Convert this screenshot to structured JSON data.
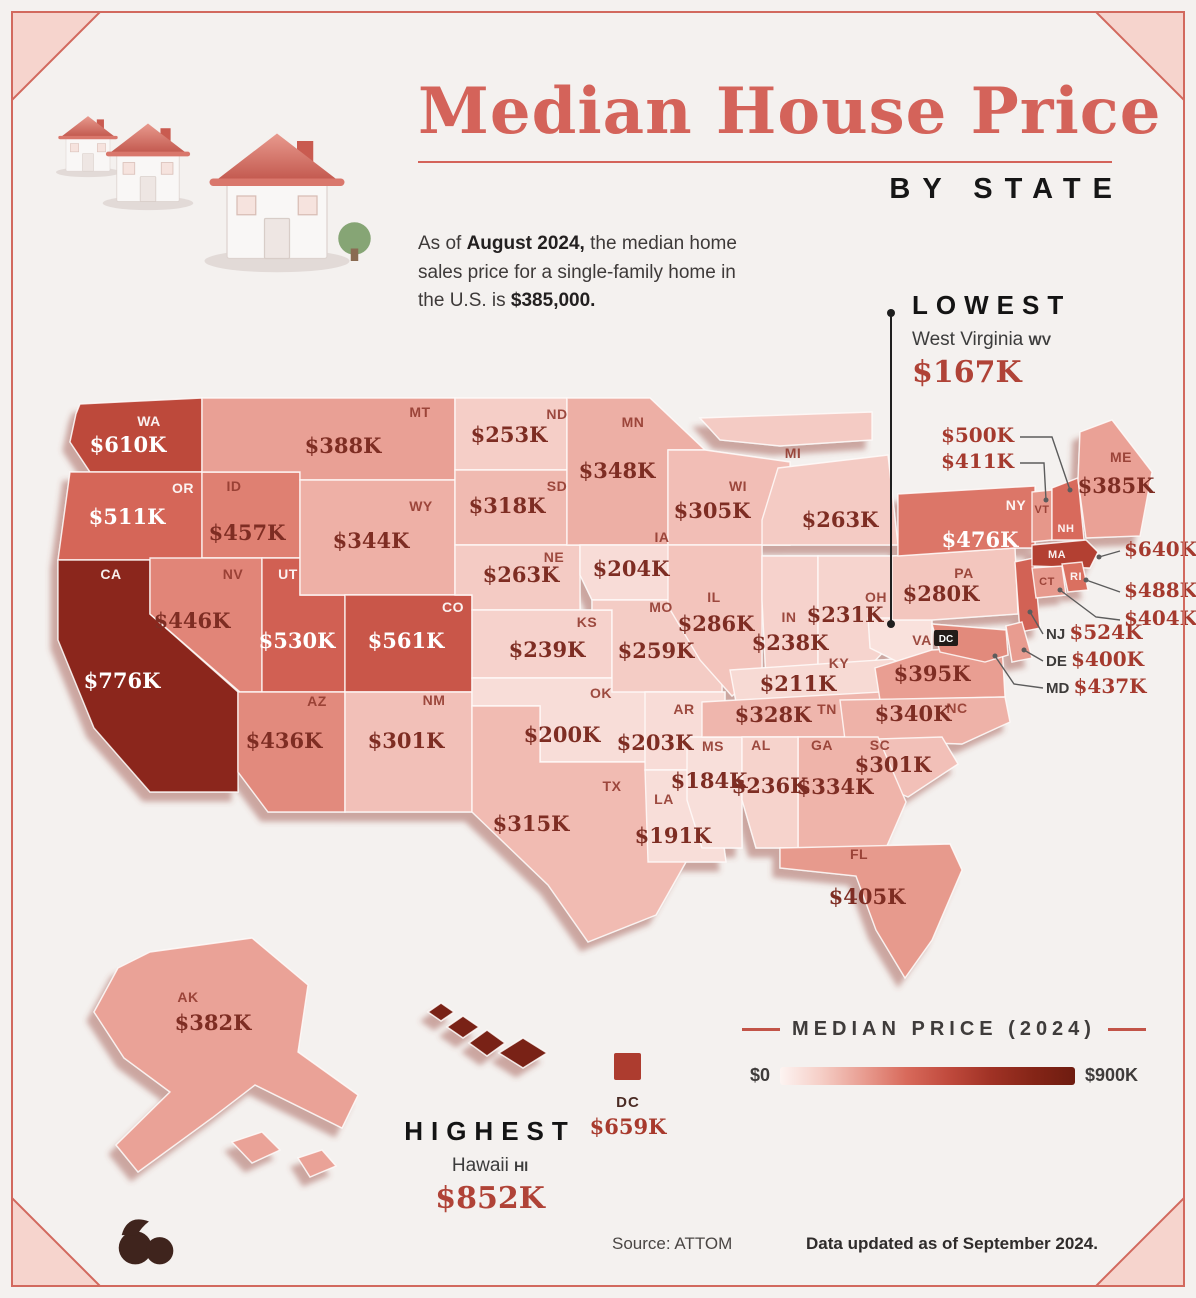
{
  "header": {
    "title": "Median House Price",
    "subtitle": "BY STATE",
    "desc_prefix": "As of ",
    "desc_bold1": "August 2024,",
    "desc_mid": " the median home sales price for a single-family home in the U.S. is ",
    "desc_bold2": "$385,000."
  },
  "annotations": {
    "lowest_label": "LOWEST",
    "lowest_state": "West Virginia",
    "lowest_abbr": "WV",
    "lowest_value": "$167K",
    "highest_label": "HIGHEST",
    "highest_state": "Hawaii",
    "highest_abbr": "HI",
    "highest_value": "$852K",
    "dc_label": "DC",
    "dc_value": "$659K"
  },
  "legend": {
    "title": "MEDIAN PRICE (2024)",
    "min": "$0",
    "max": "$900K",
    "gradient": [
      "#fdf4f2",
      "#f5cdc5",
      "#e89c90",
      "#d86a5b",
      "#c04a3d",
      "#a03225",
      "#852517",
      "#6e1c10"
    ]
  },
  "footer": {
    "source": "Source: ATTOM",
    "updated": "Data updated as of September 2024."
  },
  "colors": {
    "accent": "#d4635a",
    "deep_red": "#a83a2d",
    "background": "#f4f1ef"
  },
  "chart_data": {
    "type": "choropleth",
    "title": "Median House Price by State",
    "as_of": "August 2024",
    "national_median_usd": 385000,
    "unit": "USD (thousands)",
    "scale": {
      "min": 0,
      "max": 900,
      "legend_title": "MEDIAN PRICE (2024)",
      "stops": [
        [
          0,
          "#fdf4f2"
        ],
        [
          200,
          "#f8ddd8"
        ],
        [
          300,
          "#f2c0b8"
        ],
        [
          400,
          "#e89c90"
        ],
        [
          500,
          "#d86a5b"
        ],
        [
          600,
          "#c04a3d"
        ],
        [
          700,
          "#a03225"
        ],
        [
          800,
          "#852517"
        ],
        [
          900,
          "#6e1c10"
        ]
      ]
    },
    "states": [
      {
        "abbr": "WA",
        "value": 610,
        "label": "$610K"
      },
      {
        "abbr": "OR",
        "value": 511,
        "label": "$511K"
      },
      {
        "abbr": "CA",
        "value": 776,
        "label": "$776K"
      },
      {
        "abbr": "ID",
        "value": 457,
        "label": "$457K"
      },
      {
        "abbr": "NV",
        "value": 446,
        "label": "$446K"
      },
      {
        "abbr": "UT",
        "value": 530,
        "label": "$530K"
      },
      {
        "abbr": "AZ",
        "value": 436,
        "label": "$436K"
      },
      {
        "abbr": "MT",
        "value": 388,
        "label": "$388K"
      },
      {
        "abbr": "WY",
        "value": 344,
        "label": "$344K"
      },
      {
        "abbr": "CO",
        "value": 561,
        "label": "$561K"
      },
      {
        "abbr": "NM",
        "value": 301,
        "label": "$301K"
      },
      {
        "abbr": "ND",
        "value": 253,
        "label": "$253K"
      },
      {
        "abbr": "SD",
        "value": 318,
        "label": "$318K"
      },
      {
        "abbr": "NE",
        "value": 263,
        "label": "$263K"
      },
      {
        "abbr": "KS",
        "value": 239,
        "label": "$239K"
      },
      {
        "abbr": "OK",
        "value": 200,
        "label": "$200K"
      },
      {
        "abbr": "TX",
        "value": 315,
        "label": "$315K"
      },
      {
        "abbr": "MN",
        "value": 348,
        "label": "$348K"
      },
      {
        "abbr": "IA",
        "value": 204,
        "label": "$204K"
      },
      {
        "abbr": "MO",
        "value": 259,
        "label": "$259K"
      },
      {
        "abbr": "AR",
        "value": 203,
        "label": "$203K"
      },
      {
        "abbr": "LA",
        "value": 191,
        "label": "$191K"
      },
      {
        "abbr": "WI",
        "value": 305,
        "label": "$305K"
      },
      {
        "abbr": "IL",
        "value": 286,
        "label": "$286K"
      },
      {
        "abbr": "MS",
        "value": 184,
        "label": "$184K"
      },
      {
        "abbr": "MI",
        "value": 263,
        "label": "$263K"
      },
      {
        "abbr": "IN",
        "value": 238,
        "label": "$238K"
      },
      {
        "abbr": "OH",
        "value": 231,
        "label": "$231K"
      },
      {
        "abbr": "KY",
        "value": 211,
        "label": "$211K"
      },
      {
        "abbr": "TN",
        "value": 328,
        "label": "$328K"
      },
      {
        "abbr": "WV",
        "value": 167,
        "label": "$167K"
      },
      {
        "abbr": "VA",
        "value": 395,
        "label": "$395K"
      },
      {
        "abbr": "NC",
        "value": 340,
        "label": "$340K"
      },
      {
        "abbr": "SC",
        "value": 301,
        "label": "$301K"
      },
      {
        "abbr": "GA",
        "value": 334,
        "label": "$334K"
      },
      {
        "abbr": "AL",
        "value": 236,
        "label": "$236K"
      },
      {
        "abbr": "FL",
        "value": 405,
        "label": "$405K"
      },
      {
        "abbr": "PA",
        "value": 280,
        "label": "$280K"
      },
      {
        "abbr": "NY",
        "value": 476,
        "label": "$476K"
      },
      {
        "abbr": "NJ",
        "value": 524,
        "label": "$524K"
      },
      {
        "abbr": "DE",
        "value": 400,
        "label": "$400K"
      },
      {
        "abbr": "MD",
        "value": 437,
        "label": "$437K"
      },
      {
        "abbr": "VT",
        "value": 411,
        "label": "$411K"
      },
      {
        "abbr": "NH",
        "value": 500,
        "label": "$500K"
      },
      {
        "abbr": "MA",
        "value": 640,
        "label": "$640K"
      },
      {
        "abbr": "CT",
        "value": 404,
        "label": "$404K"
      },
      {
        "abbr": "RI",
        "value": 488,
        "label": "$488K"
      },
      {
        "abbr": "ME",
        "value": 385,
        "label": "$385K"
      },
      {
        "abbr": "AK",
        "value": 382,
        "label": "$382K"
      },
      {
        "abbr": "HI",
        "value": 852,
        "label": "$852K"
      },
      {
        "abbr": "DC",
        "value": 659,
        "label": "$659K"
      }
    ],
    "ne_callouts": [
      {
        "state": "NH",
        "price": "$500K"
      },
      {
        "state": "VT",
        "price": "$411K"
      },
      {
        "state": "MA",
        "price": "$640K"
      },
      {
        "state": "RI",
        "price": "$488K"
      },
      {
        "state": "CT",
        "price": "$404K"
      },
      {
        "state": "NJ",
        "price": "$524K"
      },
      {
        "state": "DE",
        "price": "$400K"
      },
      {
        "state": "MD",
        "price": "$437K"
      }
    ]
  }
}
